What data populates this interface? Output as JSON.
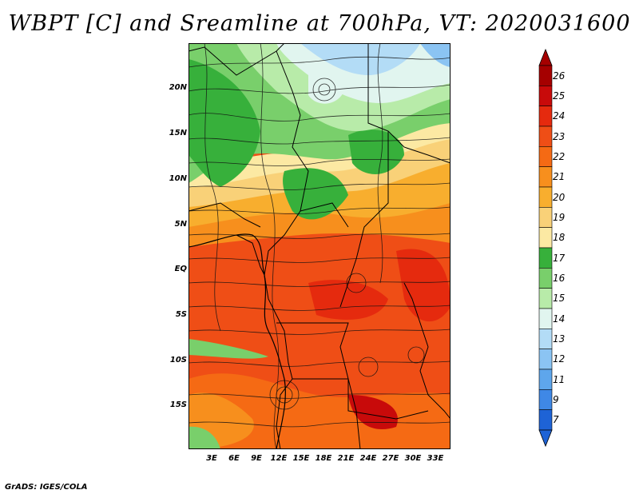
{
  "title": "WBPT [C] and Sreamline at 700hPa, VT: 2020031600",
  "credit": "GrADS: IGES/COLA",
  "map": {
    "lat_labels": [
      "20N",
      "15N",
      "10N",
      "5N",
      "EQ",
      "5S",
      "10S",
      "15S"
    ],
    "lon_labels": [
      "3E",
      "6E",
      "9E",
      "12E",
      "15E",
      "18E",
      "21E",
      "24E",
      "27E",
      "30E",
      "33E"
    ],
    "shading_variable": "Wet-bulb potential temperature (C)",
    "overlay": "Streamlines"
  },
  "colorbar": {
    "labels": [
      "26",
      "25",
      "24",
      "23",
      "22",
      "21",
      "20",
      "19",
      "18",
      "17",
      "16",
      "15",
      "14",
      "13",
      "12",
      "11",
      "9",
      "7"
    ],
    "colors": [
      "#a50000",
      "#c80a0a",
      "#e52a0e",
      "#ef4e16",
      "#f56a14",
      "#f78f1d",
      "#f8ae2e",
      "#f9d178",
      "#fce9a3",
      "#37b03b",
      "#79cf6b",
      "#b8eba9",
      "#e1f5ef",
      "#b3dcf6",
      "#8bc4f3",
      "#5ea6ec",
      "#3f88e6",
      "#1e63d6"
    ]
  }
}
